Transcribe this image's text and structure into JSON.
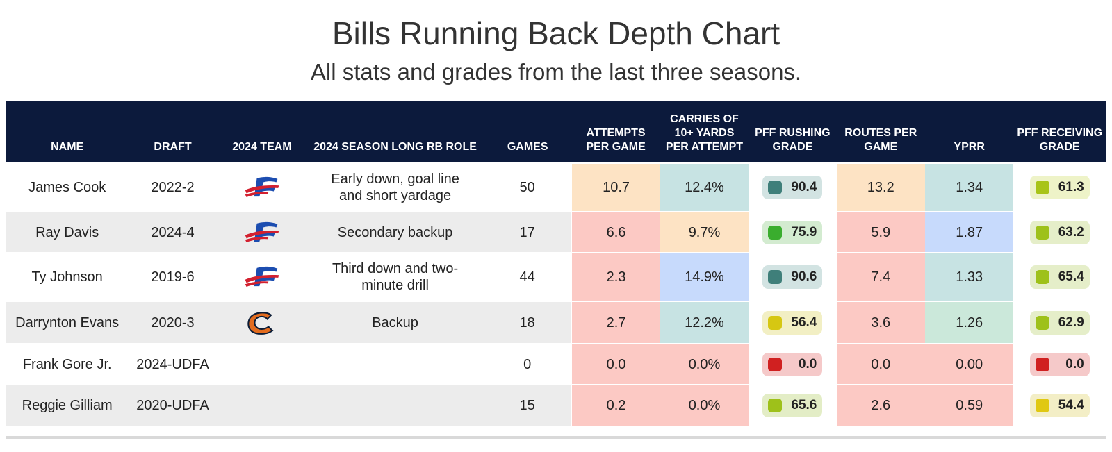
{
  "header": {
    "title": "Bills Running Back Depth Chart",
    "subtitle": "All stats and grades from the last three seasons."
  },
  "chart_data": {
    "type": "table",
    "columns": [
      "NAME",
      "DRAFT",
      "2024 TEAM",
      "2024 SEASON LONG RB ROLE",
      "GAMES",
      "ATTEMPTS PER GAME",
      "CARRIES OF 10+ YARDS PER ATTEMPT",
      "PFF RUSHING GRADE",
      "ROUTES PER GAME",
      "YPRR",
      "PFF RECEIVING GRADE"
    ],
    "rows": [
      {
        "name": "James Cook",
        "draft": "2022-2",
        "team_logo": "bills-logo",
        "role": "Early down, goal line and short yardage",
        "games": "50",
        "attempts": "10.7",
        "carries10": "12.4%",
        "rush_grade": "90.4",
        "routes": "13.2",
        "yprr": "1.34",
        "recv_grade": "61.3"
      },
      {
        "name": "Ray Davis",
        "draft": "2024-4",
        "team_logo": "bills-logo",
        "role": "Secondary backup",
        "games": "17",
        "attempts": "6.6",
        "carries10": "9.7%",
        "rush_grade": "75.9",
        "routes": "5.9",
        "yprr": "1.87",
        "recv_grade": "63.2"
      },
      {
        "name": "Ty Johnson",
        "draft": "2019-6",
        "team_logo": "bills-logo",
        "role": "Third down and two-minute drill",
        "games": "44",
        "attempts": "2.3",
        "carries10": "14.9%",
        "rush_grade": "90.6",
        "routes": "7.4",
        "yprr": "1.33",
        "recv_grade": "65.4"
      },
      {
        "name": "Darrynton Evans",
        "draft": "2020-3",
        "team_logo": "bears-logo",
        "role": "Backup",
        "games": "18",
        "attempts": "2.7",
        "carries10": "12.2%",
        "rush_grade": "56.4",
        "routes": "3.6",
        "yprr": "1.26",
        "recv_grade": "62.9"
      },
      {
        "name": "Frank Gore Jr.",
        "draft": "2024-UDFA",
        "team_logo": "",
        "role": "",
        "games": "0",
        "attempts": "0.0",
        "carries10": "0.0%",
        "rush_grade": "0.0",
        "routes": "0.0",
        "yprr": "0.00",
        "recv_grade": "0.0"
      },
      {
        "name": "Reggie Gilliam",
        "draft": "2020-UDFA",
        "team_logo": "",
        "role": "",
        "games": "15",
        "attempts": "0.2",
        "carries10": "0.0%",
        "rush_grade": "65.6",
        "routes": "2.6",
        "yprr": "0.59",
        "recv_grade": "54.4"
      }
    ],
    "cell_colors": {
      "attempts": [
        "#fde3c4",
        "#fcc9c4",
        "#fcc9c4",
        "#fcc9c4",
        "#fcc9c4",
        "#fcc9c4"
      ],
      "carries10": [
        "#c7e3e3",
        "#fde3c4",
        "#c7dafc",
        "#c7e3e3",
        "#fcc9c4",
        "#fcc9c4"
      ],
      "routes": [
        "#fde3c4",
        "#fcc9c4",
        "#fcc9c4",
        "#fcc9c4",
        "#fcc9c4",
        "#fcc9c4"
      ],
      "yprr": [
        "#c7e3e3",
        "#c7dafc",
        "#c7e3e3",
        "#cbe8da",
        "#fcc9c4",
        "#fcc9c4"
      ]
    },
    "grade_colors": {
      "rush_grade": [
        "#3f7f7a",
        "#3aad2e",
        "#3f7f7a",
        "#d6c712",
        "#d02020",
        "#9ec11a"
      ],
      "recv_grade": [
        "#a8c418",
        "#9ec11a",
        "#9ec11a",
        "#9ec11a",
        "#d02020",
        "#e0c812"
      ]
    },
    "grade_pill_bg": {
      "rush_grade": [
        "#d2e3e2",
        "#d3ebd0",
        "#d2e3e2",
        "#f2efc4",
        "#f5c9c9",
        "#e3edc6"
      ],
      "recv_grade": [
        "#eef3c8",
        "#e5eec9",
        "#e5eec9",
        "#e5eec9",
        "#f5c9c9",
        "#f3eec6"
      ]
    }
  }
}
